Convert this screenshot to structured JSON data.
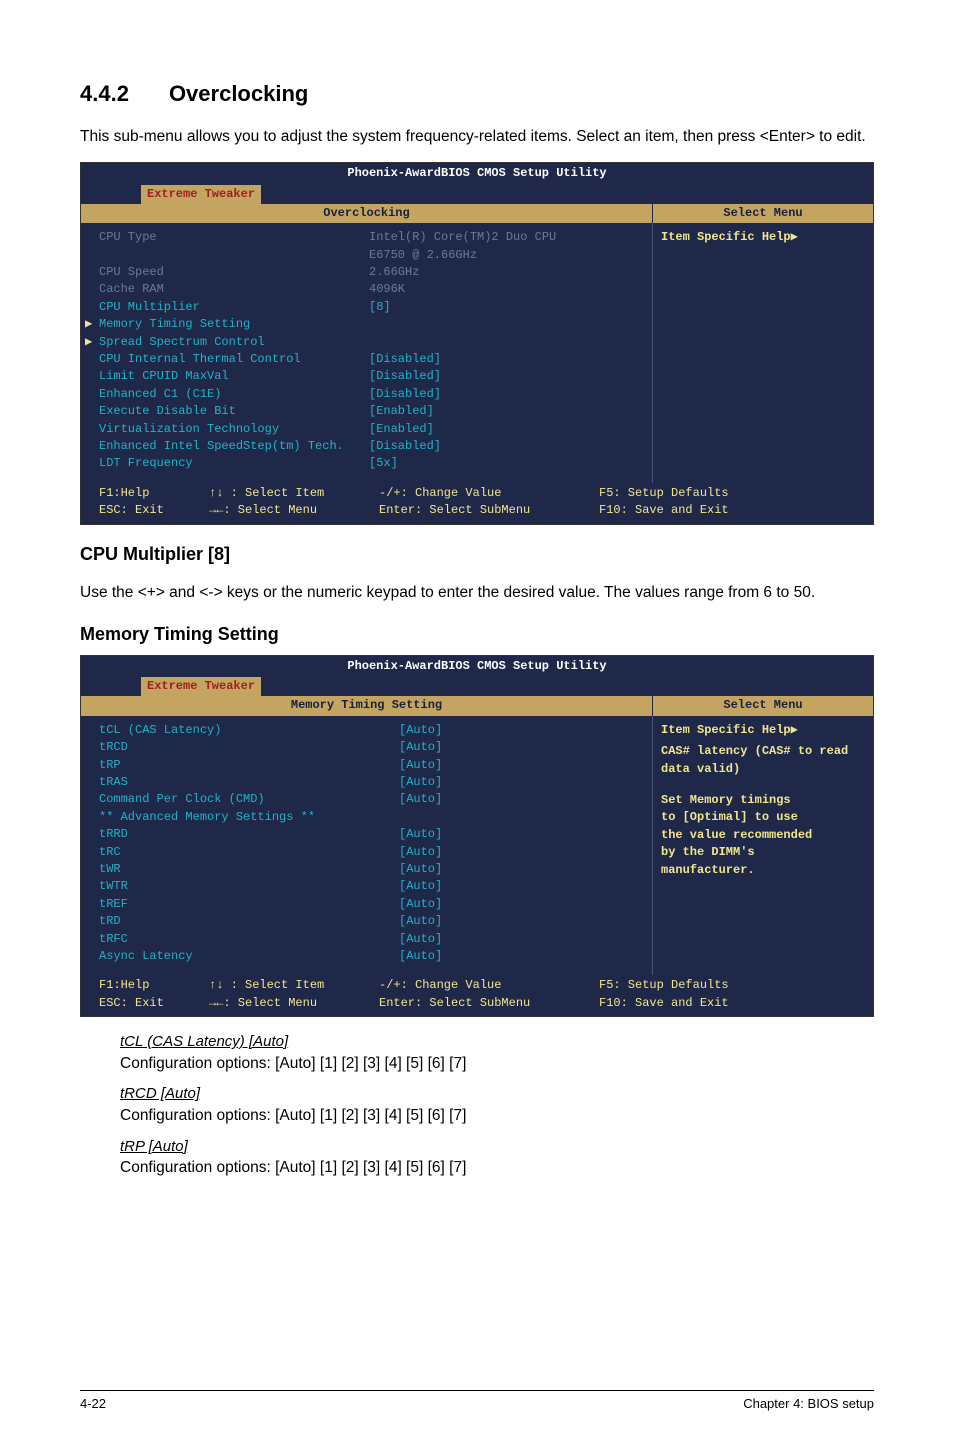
{
  "section": {
    "number": "4.4.2",
    "title": "Overclocking"
  },
  "intro": "This sub-menu allows you to adjust the system frequency-related items. Select an item, then press <Enter> to edit.",
  "bios1": {
    "title": "Phoenix-AwardBIOS CMOS Setup Utility",
    "tab": "Extreme Tweaker",
    "left_header": "Overclocking",
    "right_header": "Select Menu",
    "right_help": "Item Specific Help▶",
    "rows": [
      {
        "label": "CPU Type",
        "value": "Intel(R) Core(TM)2 Duo CPU",
        "gray": true
      },
      {
        "label": "",
        "value": "E6750 @ 2.66GHz",
        "gray": true
      },
      {
        "label": "CPU Speed",
        "value": "2.66GHz",
        "gray": true
      },
      {
        "label": "Cache RAM",
        "value": "4096K",
        "gray": true
      },
      {
        "label": "CPU Multiplier",
        "value": "[8]",
        "gray": false
      },
      {
        "label": "",
        "value": "",
        "gray": false
      },
      {
        "label": "Memory Timing Setting",
        "value": "",
        "arrow": true
      },
      {
        "label": "Spread Spectrum Control",
        "value": "",
        "arrow": true
      },
      {
        "label": "CPU Internal Thermal Control",
        "value": "[Disabled]"
      },
      {
        "label": "Limit CPUID MaxVal",
        "value": "[Disabled]"
      },
      {
        "label": "Enhanced C1 (C1E)",
        "value": "[Disabled]"
      },
      {
        "label": "Execute Disable Bit",
        "value": "[Enabled]"
      },
      {
        "label": "Virtualization Technology",
        "value": "[Enabled]"
      },
      {
        "label": "Enhanced Intel SpeedStep(tm) Tech.",
        "value": "[Disabled]"
      },
      {
        "label": "LDT Frequency",
        "value": "[5x]"
      }
    ],
    "footer": {
      "f1": "F1:Help",
      "sel_item": "↑↓ : Select Item",
      "change": "-/+: Change Value",
      "defaults": "F5: Setup Defaults",
      "esc": "ESC: Exit",
      "sel_menu": "→←: Select Menu",
      "submenu": "Enter: Select SubMenu",
      "save": "F10: Save and Exit"
    }
  },
  "cpu_mult": {
    "heading": "CPU Multiplier [8]",
    "text_prefix": "Use the <+> and <-> keys or ",
    "text_bold": "the numeric keypad to enter the desired value. The",
    "text_rest": "values range from 6 to 50."
  },
  "mem_heading": "Memory Timing Setting",
  "bios2": {
    "title": "Phoenix-AwardBIOS CMOS Setup Utility",
    "tab": "Extreme Tweaker",
    "left_header": "Memory Timing Setting",
    "right_header": "Select Menu",
    "right_help1": "Item Specific Help▶",
    "right_help2": "CAS# latency (CAS# to read data valid)",
    "right_help3a": "Set Memory timings",
    "right_help3b": "to [Optimal] to use",
    "right_help3c": "the value recommended",
    "right_help3d": "by the DIMM's",
    "right_help3e": "manufacturer.",
    "rows": [
      {
        "label": "tCL (CAS Latency)",
        "value": "[Auto]"
      },
      {
        "label": "tRCD",
        "value": "[Auto]"
      },
      {
        "label": "tRP",
        "value": "[Auto]"
      },
      {
        "label": "tRAS",
        "value": "[Auto]"
      },
      {
        "label": "Command Per Clock (CMD)",
        "value": "[Auto]"
      },
      {
        "label": "",
        "value": ""
      },
      {
        "label": "** Advanced Memory Settings **",
        "value": ""
      },
      {
        "label": "tRRD",
        "value": "[Auto]"
      },
      {
        "label": "tRC",
        "value": "[Auto]"
      },
      {
        "label": "tWR",
        "value": "[Auto]"
      },
      {
        "label": "tWTR",
        "value": "[Auto]"
      },
      {
        "label": "tREF",
        "value": "[Auto]"
      },
      {
        "label": "tRD",
        "value": "[Auto]"
      },
      {
        "label": "tRFC",
        "value": "[Auto]"
      },
      {
        "label": "Async Latency",
        "value": "[Auto]"
      }
    ],
    "footer": {
      "f1": "F1:Help",
      "sel_item": "↑↓ : Select Item",
      "change": "-/+: Change Value",
      "defaults": "F5: Setup Defaults",
      "esc": "ESC: Exit",
      "sel_menu": "→←: Select Menu",
      "submenu": "Enter: Select SubMenu",
      "save": "F10: Save and Exit"
    }
  },
  "options": [
    {
      "label": "tCL (CAS Latency) [Auto]",
      "desc": "Configuration options: [Auto] [1] [2] [3] [4] [5] [6] [7]"
    },
    {
      "label": "tRCD [Auto]",
      "desc": "Configuration options: [Auto] [1] [2] [3] [4] [5] [6] [7]"
    },
    {
      "label": "tRP [Auto]",
      "desc": "Configuration options: [Auto] [1] [2] [3] [4] [5] [6] [7]"
    }
  ],
  "footer": {
    "left": "4-22",
    "right": "Chapter 4: BIOS setup"
  }
}
